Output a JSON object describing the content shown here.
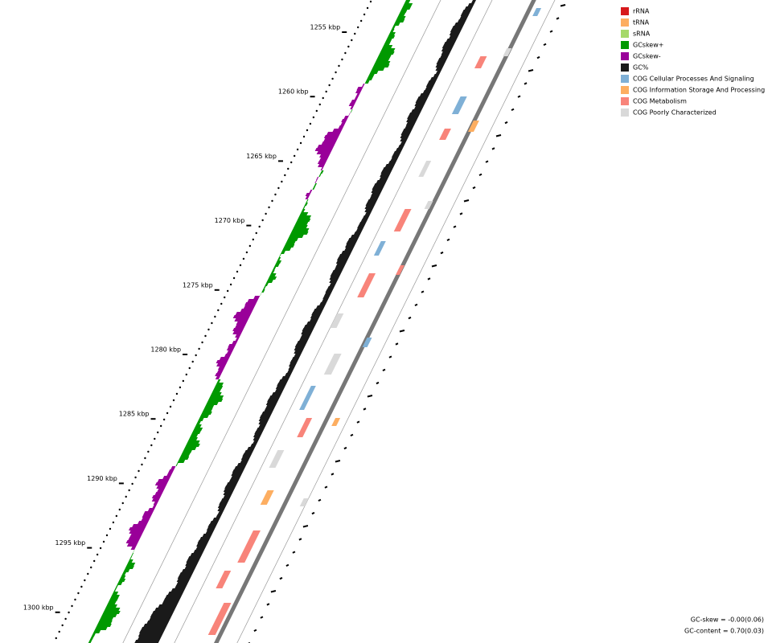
{
  "ruler": {
    "labels": [
      "1255 kbp",
      "1260 kbp",
      "1265 kbp",
      "1270 kbp",
      "1275 kbp",
      "1280 kbp",
      "1285 kbp",
      "1290 kbp",
      "1295 kbp",
      "1300 kbp"
    ]
  },
  "legend": {
    "items": [
      {
        "label": "rRNA",
        "color": "#d7191c"
      },
      {
        "label": "tRNA",
        "color": "#fdae61"
      },
      {
        "label": "sRNA",
        "color": "#a6d96a"
      },
      {
        "label": "GCskew+",
        "color": "#009900"
      },
      {
        "label": "GCskew-",
        "color": "#990099"
      },
      {
        "label": "GC%",
        "color": "#1a1a1a"
      },
      {
        "label": "COG Cellular Processes And Signaling",
        "color": "#7fb0d6"
      },
      {
        "label": "COG Information Storage And Processing",
        "color": "#fdae61"
      },
      {
        "label": "COG Metabolism",
        "color": "#f8847a"
      },
      {
        "label": "COG Poorly Characterized",
        "color": "#d9d9d9"
      }
    ]
  },
  "stats": [
    "GC-skew = -0.00(0.06)",
    "GC-content = 0.70(0.03)"
  ]
}
